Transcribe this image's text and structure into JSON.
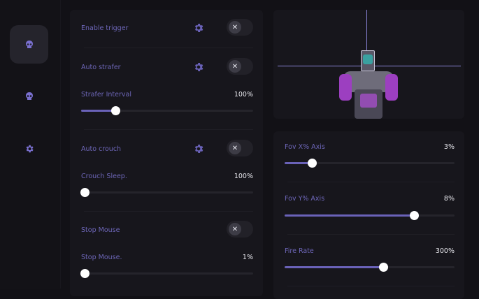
{
  "colors": {
    "accent": "#6a62b8",
    "background": "#121116",
    "panel": "#17161c"
  },
  "sidebar": {
    "items": [
      {
        "icon": "skull-icon",
        "active": true
      },
      {
        "icon": "skull-icon",
        "active": false
      },
      {
        "icon": "gear-icon",
        "active": false
      }
    ]
  },
  "left_panel": {
    "enable_trigger": {
      "label": "Enable trigger",
      "enabled": false
    },
    "auto_strafer": {
      "label": "Auto strafer",
      "enabled": false
    },
    "strafer_interval": {
      "label": "Strafer Interval",
      "value": "100%",
      "fraction": 0.2
    },
    "auto_crouch": {
      "label": "Auto crouch",
      "enabled": false
    },
    "crouch_sleep": {
      "label": "Crouch Sleep.",
      "value": "100%",
      "fraction": 0.02
    },
    "stop_mouse": {
      "label": "Stop Mouse",
      "enabled": false
    },
    "stop_mouse_value": {
      "label": "Stop Mouse.",
      "value": "1%",
      "fraction": 0.02
    }
  },
  "right_panel": {
    "fov_x": {
      "label": "Fov X% Axis",
      "value": "3%",
      "fraction": 0.16
    },
    "fov_y": {
      "label": "Fov Y% Axis",
      "value": "8%",
      "fraction": 0.76
    },
    "fire_rate": {
      "label": "Fire Rate",
      "value": "300%",
      "fraction": 0.58
    }
  },
  "toggle_glyph": "✕"
}
